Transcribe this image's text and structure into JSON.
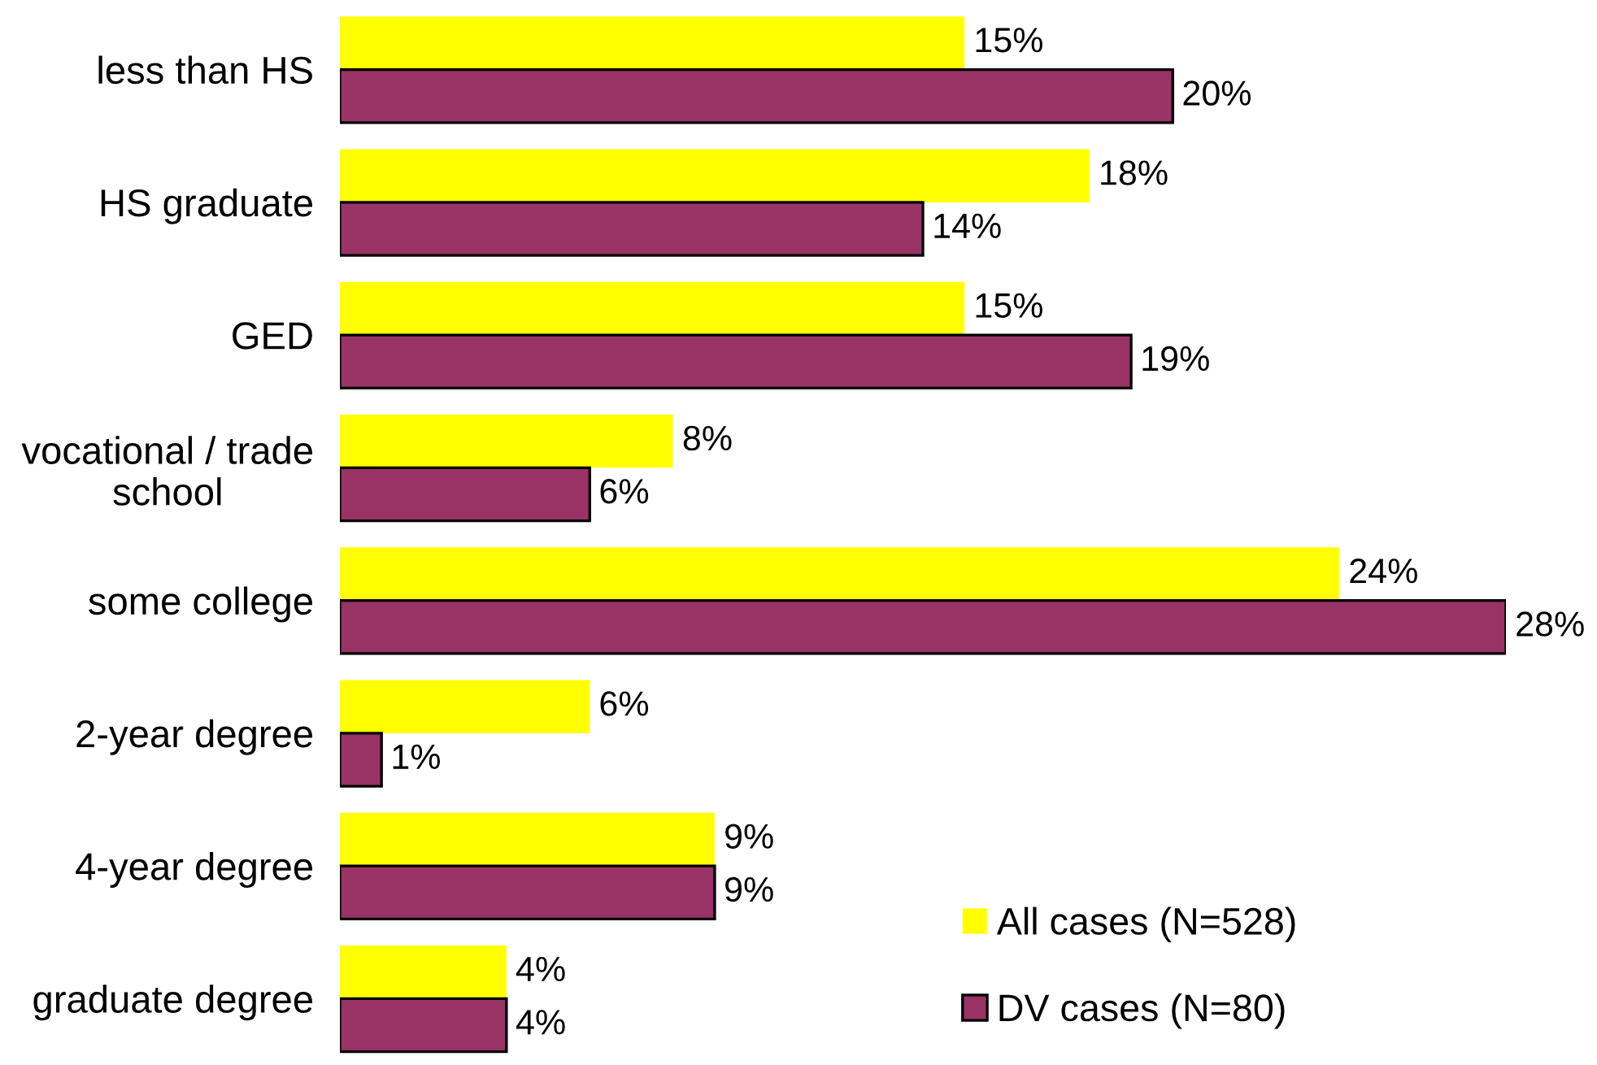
{
  "chart_data": {
    "type": "bar",
    "orientation": "horizontal",
    "categories": [
      "less than HS",
      "HS graduate",
      "GED",
      "vocational / trade\nschool",
      "some college",
      "2-year degree",
      "4-year degree",
      "graduate degree"
    ],
    "series": [
      {
        "name": "All cases (N=528)",
        "color": "#ffff00",
        "values": [
          15,
          18,
          15,
          8,
          24,
          6,
          9,
          4
        ],
        "value_labels": [
          "15%",
          "18%",
          "15%",
          "8%",
          "24%",
          "6%",
          "9%",
          "4%"
        ]
      },
      {
        "name": "DV cases (N=80)",
        "color": "#993366",
        "values": [
          20,
          14,
          19,
          6,
          28,
          1,
          9,
          4
        ],
        "value_labels": [
          "20%",
          "14%",
          "19%",
          "6%",
          "28%",
          "1%",
          "9%",
          "4%"
        ]
      }
    ],
    "grid": false,
    "legend": "bottom right",
    "tick_labels": "y"
  }
}
